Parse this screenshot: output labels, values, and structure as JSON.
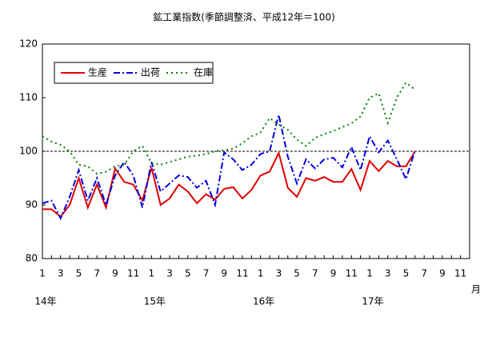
{
  "chart_data": {
    "type": "line",
    "title": "鉱工業指数(季節調整済、平成12年＝100)",
    "categories": [
      "1",
      null,
      "3",
      null,
      "5",
      null,
      "7",
      null,
      "9",
      null,
      "11",
      null,
      "1",
      null,
      "3",
      null,
      "5",
      null,
      "7",
      null,
      "9",
      null,
      "11",
      null,
      "1",
      null,
      "3",
      null,
      "5",
      null,
      "7",
      null,
      "9",
      null,
      "11",
      null,
      "1",
      null,
      "3",
      null,
      "5",
      null,
      "7",
      null,
      "9",
      null,
      "11",
      null
    ],
    "year_labels": [
      "14年",
      "15年",
      "16年",
      "17年"
    ],
    "x_unit": "月",
    "series": [
      {
        "name": "生産",
        "color": "#e00000",
        "style": "solid",
        "values": [
          89.2,
          89.2,
          87.8,
          90.0,
          95.0,
          89.5,
          93.8,
          89.5,
          96.8,
          94.3,
          93.8,
          90.8,
          97.0,
          90.0,
          91.2,
          93.8,
          92.5,
          90.3,
          92.0,
          91.0,
          93.0,
          93.3,
          91.2,
          92.8,
          95.5,
          96.2,
          99.7,
          93.2,
          91.5,
          95.0,
          94.5,
          95.2,
          94.3,
          94.3,
          96.7,
          92.8,
          98.2,
          96.3,
          98.2,
          97.2,
          97.2,
          100.0,
          null,
          null,
          null,
          null,
          null,
          null
        ]
      },
      {
        "name": "出荷",
        "color": "#0000e0",
        "style": "dashdot",
        "values": [
          90.3,
          90.8,
          87.5,
          91.5,
          96.5,
          90.8,
          95.0,
          90.0,
          95.5,
          98.0,
          95.5,
          89.5,
          98.0,
          92.5,
          94.0,
          95.5,
          95.2,
          93.2,
          94.5,
          90.0,
          99.8,
          98.5,
          96.5,
          97.5,
          99.5,
          100.0,
          106.8,
          99.0,
          94.0,
          98.5,
          96.8,
          98.5,
          98.8,
          97.0,
          100.8,
          96.5,
          102.8,
          99.8,
          102.0,
          98.5,
          94.8,
          100.2,
          null,
          null,
          null,
          null,
          null,
          null
        ]
      },
      {
        "name": "在庫",
        "color": "#008000",
        "style": "dotted",
        "values": [
          102.8,
          101.8,
          101.2,
          100.0,
          97.5,
          97.2,
          95.8,
          96.2,
          97.2,
          97.5,
          100.0,
          101.0,
          97.8,
          97.5,
          98.0,
          98.5,
          99.0,
          99.2,
          99.5,
          100.0,
          100.2,
          100.5,
          101.5,
          102.8,
          103.5,
          106.2,
          105.0,
          104.0,
          102.2,
          101.0,
          102.5,
          103.2,
          103.8,
          104.5,
          105.2,
          106.5,
          110.0,
          110.8,
          105.3,
          110.0,
          112.8,
          111.5,
          null,
          null,
          null,
          null,
          null,
          null
        ]
      }
    ],
    "ylim": [
      80,
      120
    ],
    "yticks": [
      80,
      90,
      100,
      110,
      120
    ],
    "reference_line": 100,
    "legend": "top-left"
  }
}
